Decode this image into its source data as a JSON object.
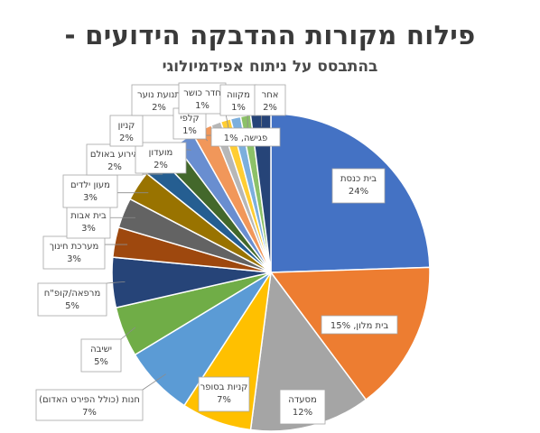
{
  "title": "פילוח מקורות ההדבקה הידועים -",
  "subtitle": "בהתבסס על ניתוח אפידמיולוגי",
  "chart_data": {
    "type": "pie",
    "title": "פילוח מקורות ההדבקה הידועים -",
    "subtitle": "בהתבסס על ניתוח אפידמיולוגי",
    "slices": [
      {
        "label": "בית כנסת",
        "value": 24,
        "display": "24%",
        "color": "#4472C4"
      },
      {
        "label": "בית מלון, 15%",
        "value": 15,
        "display": "",
        "color": "#ED7D31"
      },
      {
        "label": "מסעדה",
        "value": 12,
        "display": "12%",
        "color": "#A5A5A5"
      },
      {
        "label": "קניות בסופר",
        "value": 7,
        "display": "7%",
        "color": "#FFC000"
      },
      {
        "label": "חנות (כולל הפירט האדום)",
        "value": 7,
        "display": "7%",
        "color": "#5B9BD5"
      },
      {
        "label": "ישיבה",
        "value": 5,
        "display": "5%",
        "color": "#70AD47"
      },
      {
        "label": "מרפאה/קופ\"ח",
        "value": 5,
        "display": "5%",
        "color": "#264478"
      },
      {
        "label": "מערכת חינוך",
        "value": 3,
        "display": "3%",
        "color": "#9E480E"
      },
      {
        "label": "בית אבות",
        "value": 3,
        "display": "3%",
        "color": "#636363"
      },
      {
        "label": "מעון ילדים",
        "value": 3,
        "display": "3%",
        "color": "#997300"
      },
      {
        "label": "אירוע באולם",
        "value": 2,
        "display": "2%",
        "color": "#255E91"
      },
      {
        "label": "מועדון",
        "value": 2,
        "display": "2%",
        "color": "#43682B"
      },
      {
        "label": "קניון",
        "value": 2,
        "display": "2%",
        "color": "#698ED0"
      },
      {
        "label": "תנועת נוער",
        "value": 2,
        "display": "2%",
        "color": "#F1975A"
      },
      {
        "label": "קלפי",
        "value": 1,
        "display": "1%",
        "color": "#B7B7B7"
      },
      {
        "label": "חדר כושר",
        "value": 1,
        "display": "1%",
        "color": "#FFCD33"
      },
      {
        "label": "פגישה, 1%",
        "value": 1,
        "display": "",
        "color": "#7CAFDD"
      },
      {
        "label": "מקווה",
        "value": 1,
        "display": "1%",
        "color": "#8CC168"
      },
      {
        "label": "אחר",
        "value": 2,
        "display": "2%",
        "color": "#264478"
      }
    ]
  }
}
